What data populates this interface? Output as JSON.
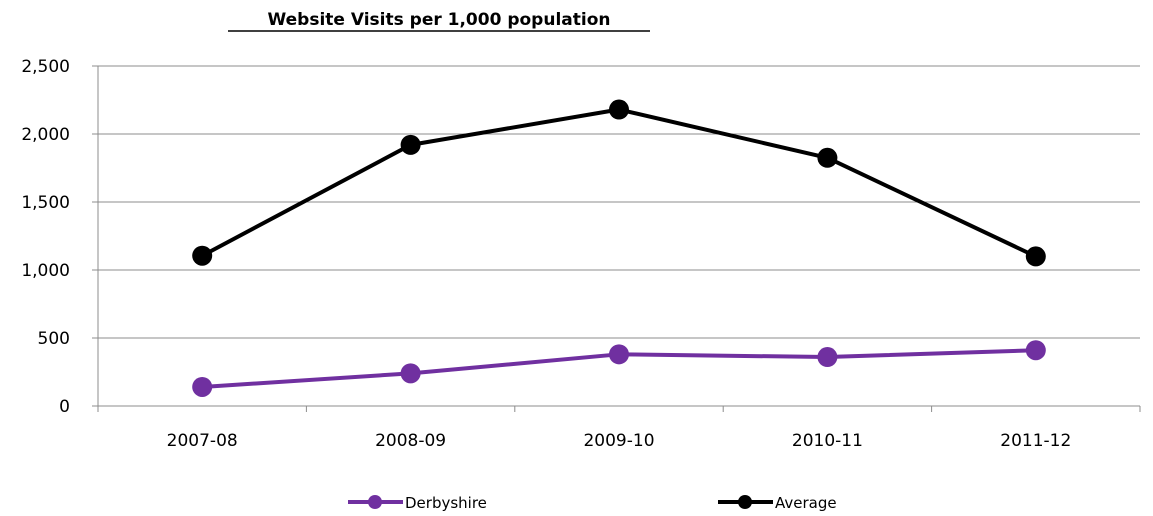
{
  "chart_data": {
    "type": "line",
    "title": "Website Visits per 1,000 population",
    "categories": [
      "2007-08",
      "2008-09",
      "2009-10",
      "2010-11",
      "2011-12"
    ],
    "ylim": [
      0,
      2500
    ],
    "y_ticks": [
      "0",
      "500",
      "1,000",
      "1,500",
      "2,000",
      "2,500"
    ],
    "y_tick_values": [
      0,
      500,
      1000,
      1500,
      2000,
      2500
    ],
    "grid": true,
    "legend_position": "bottom",
    "series": [
      {
        "name": "Derbyshire",
        "color": "#7030a0",
        "values": [
          140,
          240,
          380,
          360,
          410
        ]
      },
      {
        "name": "Average",
        "color": "#000000",
        "values": [
          1105,
          1920,
          2180,
          1825,
          1100
        ]
      }
    ]
  }
}
